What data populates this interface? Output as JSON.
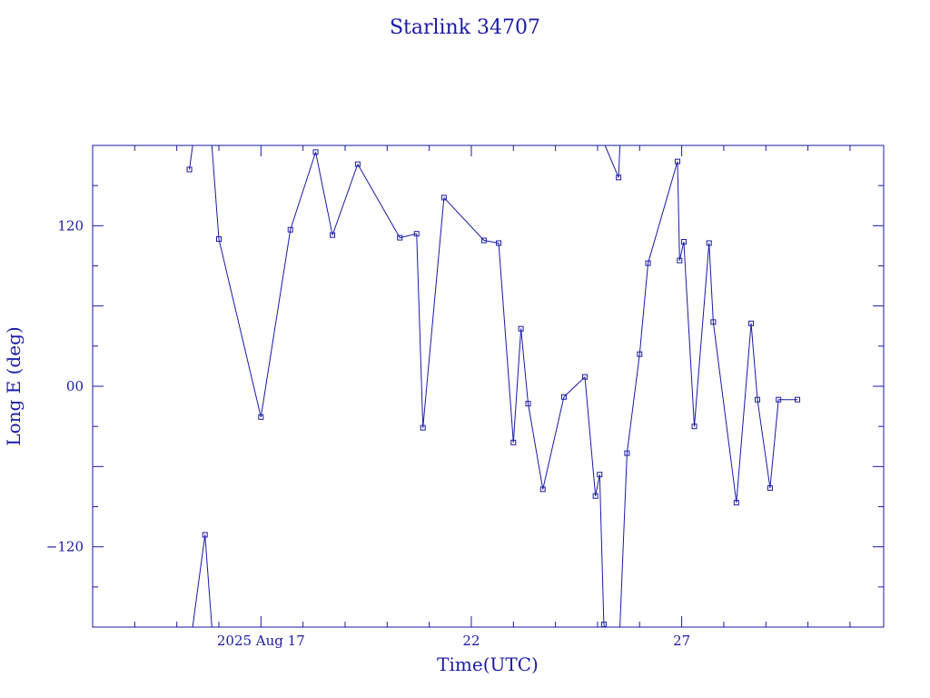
{
  "chart_data": {
    "type": "line",
    "title": "Starlink 34707",
    "xlabel": "Time(UTC)",
    "ylabel": "Long E (deg)",
    "x_unit": "days (2025 Aug)",
    "xlim": [
      13.0,
      31.8
    ],
    "ylim": [
      -180,
      180
    ],
    "x_ticks": [
      {
        "value": 17,
        "label": "2025 Aug 17"
      },
      {
        "value": 22,
        "label": "22"
      },
      {
        "value": 27,
        "label": "27"
      }
    ],
    "y_ticks": [
      {
        "value": 120,
        "label": "120"
      },
      {
        "value": 0,
        "label": "00"
      },
      {
        "value": -120,
        "label": "−120"
      }
    ],
    "grid": false,
    "series": [
      {
        "color": "#1a1aa6",
        "x": [
          15.3,
          15.67,
          16.0,
          17.0,
          17.7,
          18.3,
          18.7,
          19.3,
          20.3,
          20.7,
          20.85,
          21.35,
          22.3,
          22.65,
          23.0,
          23.18,
          23.35,
          23.7,
          24.2,
          24.7,
          24.95,
          25.05,
          25.15,
          25.5,
          25.7,
          26.0,
          26.2,
          26.9,
          26.95,
          27.05,
          27.3,
          27.65,
          27.75,
          28.3,
          28.65,
          28.8,
          29.1,
          29.3,
          29.75
        ],
        "y": [
          162,
          -111,
          110,
          -23,
          117,
          175,
          113,
          166,
          111,
          114,
          -31,
          141,
          109,
          107,
          -42,
          43,
          -13,
          -77,
          -8,
          7,
          -82,
          -66,
          -178,
          156,
          -50,
          24,
          92,
          168,
          94,
          108,
          -30,
          107,
          48,
          -87,
          47,
          -10,
          -76,
          -10,
          -10
        ]
      }
    ],
    "notes": "Longitude wraps between -180 and 180; segments crossing the wrap are drawn to the plot edge."
  }
}
